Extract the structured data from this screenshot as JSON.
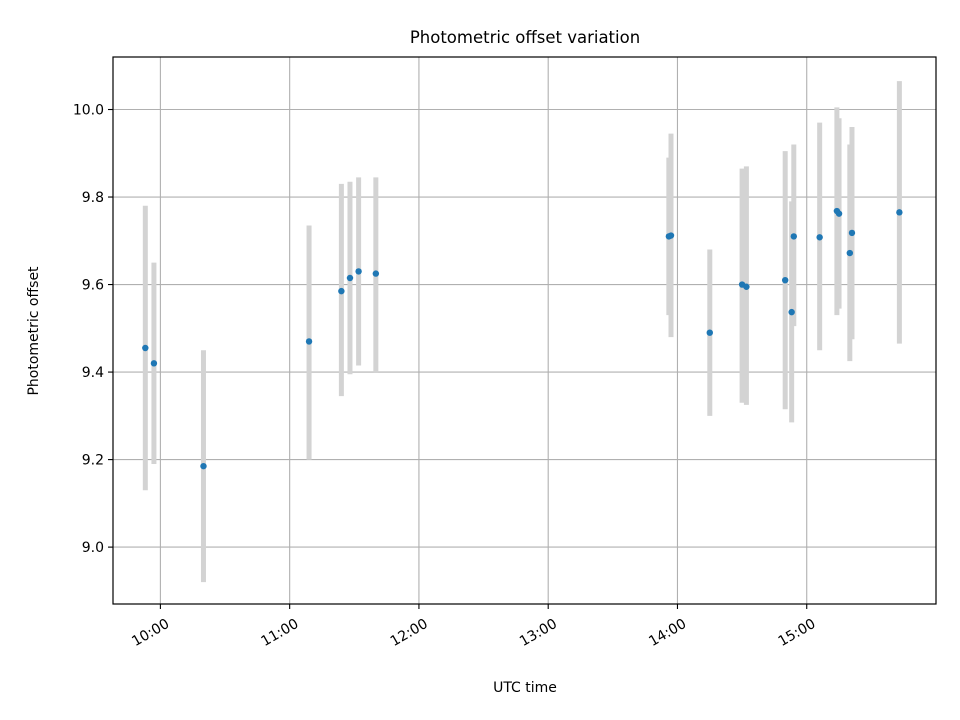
{
  "chart_data": {
    "type": "scatter",
    "title": "Photometric offset variation",
    "xlabel": "UTC time",
    "ylabel": "Photometric offset",
    "xlim": [
      "09:38",
      "16:00"
    ],
    "ylim": [
      8.87,
      10.12
    ],
    "x_ticks": [
      "10:00",
      "11:00",
      "12:00",
      "13:00",
      "14:00",
      "15:00"
    ],
    "y_ticks": [
      9.0,
      9.2,
      9.4,
      9.6,
      9.8,
      10.0
    ],
    "y_tick_labels": [
      "9.0",
      "9.2",
      "9.4",
      "9.6",
      "9.8",
      "10.0"
    ],
    "grid": true,
    "point_color": "#1f77b4",
    "errorbar_color": "#d3d3d3",
    "points": [
      {
        "x": "09:53",
        "y": 9.455,
        "ylow": 9.13,
        "yhigh": 9.78
      },
      {
        "x": "09:57",
        "y": 9.42,
        "ylow": 9.19,
        "yhigh": 9.65
      },
      {
        "x": "10:20",
        "y": 9.185,
        "ylow": 8.92,
        "yhigh": 9.45
      },
      {
        "x": "11:09",
        "y": 9.47,
        "ylow": 9.2,
        "yhigh": 9.735
      },
      {
        "x": "11:24",
        "y": 9.585,
        "ylow": 9.345,
        "yhigh": 9.83
      },
      {
        "x": "11:28",
        "y": 9.615,
        "ylow": 9.395,
        "yhigh": 9.835
      },
      {
        "x": "11:32",
        "y": 9.63,
        "ylow": 9.415,
        "yhigh": 9.845
      },
      {
        "x": "11:40",
        "y": 9.625,
        "ylow": 9.4,
        "yhigh": 9.845
      },
      {
        "x": "13:56",
        "y": 9.71,
        "ylow": 9.53,
        "yhigh": 9.89
      },
      {
        "x": "13:57",
        "y": 9.712,
        "ylow": 9.48,
        "yhigh": 9.945
      },
      {
        "x": "14:15",
        "y": 9.49,
        "ylow": 9.3,
        "yhigh": 9.68
      },
      {
        "x": "14:30",
        "y": 9.6,
        "ylow": 9.33,
        "yhigh": 9.865
      },
      {
        "x": "14:32",
        "y": 9.595,
        "ylow": 9.325,
        "yhigh": 9.87
      },
      {
        "x": "14:50",
        "y": 9.61,
        "ylow": 9.315,
        "yhigh": 9.905
      },
      {
        "x": "14:53",
        "y": 9.537,
        "ylow": 9.285,
        "yhigh": 9.79
      },
      {
        "x": "14:54",
        "y": 9.71,
        "ylow": 9.505,
        "yhigh": 9.92
      },
      {
        "x": "15:06",
        "y": 9.708,
        "ylow": 9.45,
        "yhigh": 9.97
      },
      {
        "x": "15:14",
        "y": 9.768,
        "ylow": 9.53,
        "yhigh": 10.005
      },
      {
        "x": "15:15",
        "y": 9.762,
        "ylow": 9.545,
        "yhigh": 9.98
      },
      {
        "x": "15:20",
        "y": 9.672,
        "ylow": 9.425,
        "yhigh": 9.92
      },
      {
        "x": "15:21",
        "y": 9.718,
        "ylow": 9.475,
        "yhigh": 9.96
      },
      {
        "x": "15:43",
        "y": 9.765,
        "ylow": 9.465,
        "yhigh": 10.065
      }
    ]
  }
}
